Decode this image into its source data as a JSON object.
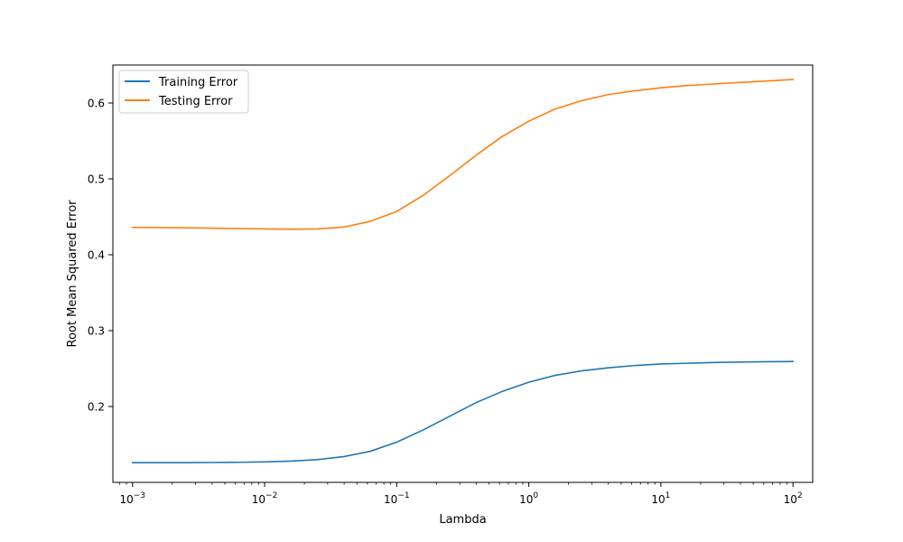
{
  "chart_data": {
    "type": "line",
    "xscale": "log",
    "xlabel": "Lambda",
    "ylabel": "Root Mean Squared Error",
    "xlim": [
      0.00071,
      141
    ],
    "ylim": [
      0.1,
      0.65
    ],
    "x_ticks": [
      {
        "value": 0.001,
        "base": "10",
        "exp": "−3"
      },
      {
        "value": 0.01,
        "base": "10",
        "exp": "−2"
      },
      {
        "value": 0.1,
        "base": "10",
        "exp": "−1"
      },
      {
        "value": 1,
        "base": "10",
        "exp": "0"
      },
      {
        "value": 10,
        "base": "10",
        "exp": "1"
      },
      {
        "value": 100,
        "base": "10",
        "exp": "2"
      }
    ],
    "y_ticks": [
      {
        "value": 0.2,
        "label": "0.2"
      },
      {
        "value": 0.3,
        "label": "0.3"
      },
      {
        "value": 0.4,
        "label": "0.4"
      },
      {
        "value": 0.5,
        "label": "0.5"
      },
      {
        "value": 0.6,
        "label": "0.6"
      }
    ],
    "legend_position": "top-left",
    "grid": false,
    "x": [
      0.001,
      0.00158,
      0.00251,
      0.00398,
      0.00631,
      0.01,
      0.0158,
      0.0251,
      0.0398,
      0.0631,
      0.1,
      0.158,
      0.251,
      0.398,
      0.631,
      1,
      1.58,
      2.51,
      3.98,
      6.31,
      10,
      15.8,
      25.1,
      39.8,
      63.1,
      100
    ],
    "series": [
      {
        "name": "Training Error",
        "color": "#1f77b4",
        "values": [
          0.126,
          0.126,
          0.126,
          0.1262,
          0.1265,
          0.127,
          0.128,
          0.13,
          0.134,
          0.141,
          0.153,
          0.169,
          0.187,
          0.205,
          0.22,
          0.232,
          0.241,
          0.247,
          0.251,
          0.254,
          0.256,
          0.257,
          0.258,
          0.2585,
          0.259,
          0.2593
        ]
      },
      {
        "name": "Testing Error",
        "color": "#ff7f0e",
        "values": [
          0.436,
          0.4358,
          0.4355,
          0.435,
          0.4345,
          0.434,
          0.4335,
          0.434,
          0.4365,
          0.444,
          0.457,
          0.478,
          0.504,
          0.531,
          0.556,
          0.576,
          0.592,
          0.603,
          0.611,
          0.616,
          0.62,
          0.623,
          0.625,
          0.627,
          0.629,
          0.631
        ]
      }
    ]
  }
}
